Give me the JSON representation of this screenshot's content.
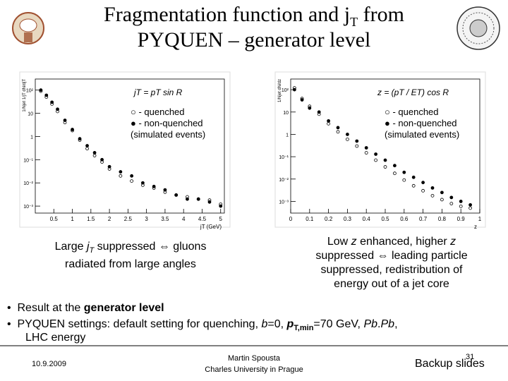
{
  "title": {
    "line1": "Fragmentation function and j",
    "line1_sub": "T",
    "line1_end": " from",
    "line2": "PYQUEN – generator level"
  },
  "plots": [
    {
      "chart_data": {
        "type": "scatter",
        "formula": "jT = pT sin R",
        "y_label": "1/Njet 1/jT dN/djT",
        "x_label": "jT (GeV)",
        "log_y": true,
        "legend_note": "(simulated events)",
        "xlim": [
          0,
          5.1
        ],
        "xticks": [
          0.5,
          1,
          1.5,
          2,
          2.5,
          3,
          3.5,
          4,
          4.5,
          5
        ],
        "ylim": [
          0.0005,
          300
        ],
        "yticks": [
          {
            "value": 0.001,
            "label": "10⁻³"
          },
          {
            "value": 0.01,
            "label": "10⁻²"
          },
          {
            "value": 0.1,
            "label": "10⁻¹"
          },
          1,
          10,
          {
            "value": 100,
            "label": "10²"
          }
        ],
        "x": [
          0.15,
          0.3,
          0.45,
          0.6,
          0.8,
          1.0,
          1.2,
          1.4,
          1.6,
          1.8,
          2.0,
          2.3,
          2.6,
          2.9,
          3.2,
          3.5,
          3.8,
          4.1,
          4.4,
          4.7,
          5.0
        ],
        "series": [
          {
            "name": "○ - quenched",
            "color": "#000000",
            "filled": false,
            "values": [
              90,
              50,
              25,
              12,
              4,
              1.8,
              0.7,
              0.3,
              0.15,
              0.08,
              0.04,
              0.02,
              0.012,
              0.008,
              0.006,
              0.004,
              0.003,
              0.0025,
              0.002,
              0.0018,
              0.0012
            ]
          },
          {
            "name": "● - non-quenched",
            "color": "#000000",
            "filled": true,
            "values": [
              100,
              60,
              30,
              15,
              5,
              2,
              0.8,
              0.4,
              0.2,
              0.1,
              0.05,
              0.03,
              0.02,
              0.01,
              0.007,
              0.005,
              0.003,
              0.002,
              0.002,
              0.0015,
              0.001
            ]
          }
        ]
      }
    },
    {
      "chart_data": {
        "type": "scatter",
        "formula": "z = (pT / ET) cos R",
        "y_label": "1/Njet dN/dz",
        "x_label": "z",
        "log_y": true,
        "legend_note": "(simulated events)",
        "xlim": [
          0,
          1
        ],
        "xticks": [
          0,
          0.1,
          0.2,
          0.3,
          0.4,
          0.5,
          0.6,
          0.7,
          0.8,
          0.9,
          1
        ],
        "ylim": [
          0.0003,
          300
        ],
        "yticks": [
          {
            "value": 0.001,
            "label": "10⁻³"
          },
          {
            "value": 0.01,
            "label": "10⁻²"
          },
          {
            "value": 0.1,
            "label": "10⁻¹"
          },
          1,
          10,
          {
            "value": 100,
            "label": "10²"
          }
        ],
        "x": [
          0.02,
          0.06,
          0.1,
          0.15,
          0.2,
          0.25,
          0.3,
          0.35,
          0.4,
          0.45,
          0.5,
          0.55,
          0.6,
          0.65,
          0.7,
          0.75,
          0.8,
          0.85,
          0.9,
          0.95
        ],
        "series": [
          {
            "name": "○ - quenched",
            "color": "#000000",
            "filled": false,
            "values": [
              120,
              40,
              18,
              8,
              3,
              1.3,
              0.6,
              0.3,
              0.15,
              0.07,
              0.035,
              0.018,
              0.009,
              0.005,
              0.003,
              0.0018,
              0.0012,
              0.0008,
              0.0006,
              0.0005
            ]
          },
          {
            "name": "● - non-quenched",
            "color": "#000000",
            "filled": true,
            "values": [
              100,
              35,
              15,
              10,
              4,
              2,
              1,
              0.5,
              0.25,
              0.13,
              0.07,
              0.04,
              0.02,
              0.012,
              0.007,
              0.004,
              0.0025,
              0.0015,
              0.001,
              0.0007
            ]
          }
        ]
      }
    }
  ],
  "captions": {
    "left": {
      "line1": [
        "Large ",
        "j",
        "T",
        " suppressed ⇔ gluons"
      ],
      "line2": "radiated from large angles"
    },
    "right": {
      "line1": [
        "Low ",
        "z",
        " enhanced, higher ",
        "z"
      ],
      "line2": "suppressed ⇔ leading particle",
      "line3": "suppressed, redistribution of",
      "line4": "energy out of a jet core"
    }
  },
  "bullets": {
    "b1": [
      "Result at the ",
      "generator level"
    ],
    "b2": [
      "PYQUEN settings: default setting for quenching, ",
      "b",
      "=0, ",
      "p",
      "T,min",
      "=70 GeV, ",
      "Pb",
      ".",
      "Pb",
      ","
    ],
    "b2_cont": "LHC energy"
  },
  "footer": {
    "date": "10.9.2009",
    "author": "Martin Spousta",
    "affiliation": "Charles University in Prague",
    "section": "Backup slides",
    "page": "31"
  }
}
